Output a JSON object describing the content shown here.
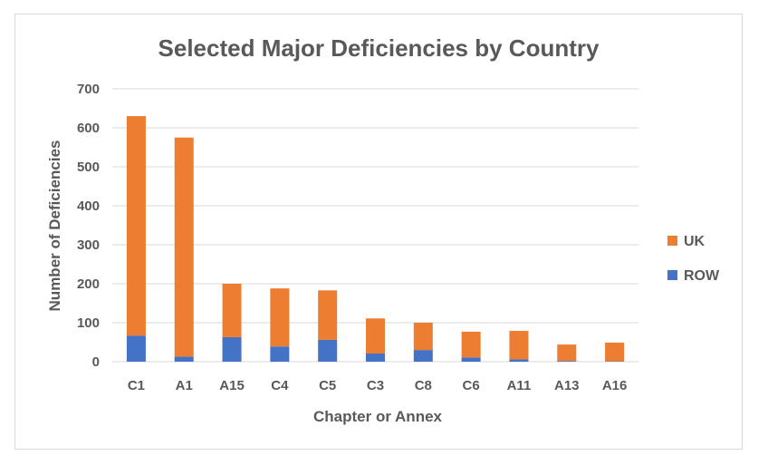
{
  "chart_data": {
    "type": "bar",
    "stacked": true,
    "title": "Selected Major Deficiencies by Country",
    "xlabel": "Chapter or Annex",
    "ylabel": "Number of Deficiencies",
    "categories": [
      "C1",
      "A1",
      "A15",
      "C4",
      "C5",
      "C3",
      "C8",
      "C6",
      "A11",
      "A13",
      "A16"
    ],
    "series": [
      {
        "name": "ROW",
        "color": "#4472c4",
        "values": [
          67,
          13,
          63,
          39,
          56,
          21,
          30,
          11,
          6,
          2,
          1
        ]
      },
      {
        "name": "UK",
        "color": "#ed7d31",
        "values": [
          563,
          562,
          137,
          149,
          127,
          90,
          70,
          66,
          73,
          42,
          48
        ]
      }
    ],
    "ylim": [
      0,
      700
    ],
    "yticks": [
      0,
      100,
      200,
      300,
      400,
      500,
      600,
      700
    ],
    "grid": true,
    "legend": "right"
  }
}
